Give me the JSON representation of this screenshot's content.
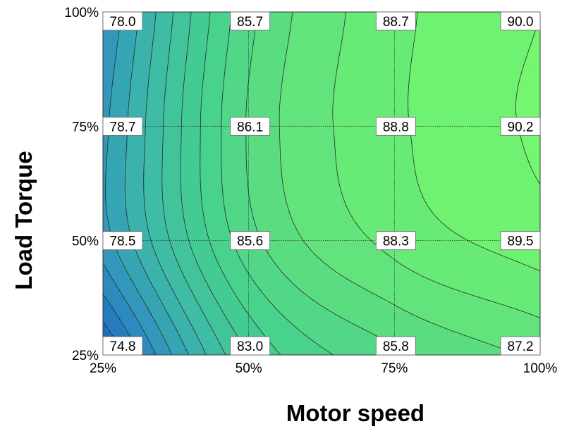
{
  "chart_data": {
    "type": "heatmap",
    "subtype": "filled-contour",
    "title": "",
    "xlabel": "Motor speed",
    "ylabel": "Load Torque",
    "x_categories": [
      "25%",
      "50%",
      "75%",
      "100%"
    ],
    "y_categories": [
      "25%",
      "50%",
      "75%",
      "100%"
    ],
    "x_values": [
      25,
      50,
      75,
      100
    ],
    "y_values": [
      25,
      50,
      75,
      100
    ],
    "xlim": [
      25,
      100
    ],
    "ylim": [
      25,
      100
    ],
    "z": [
      [
        74.8,
        83.0,
        85.8,
        87.2
      ],
      [
        78.5,
        85.6,
        88.3,
        89.5
      ],
      [
        78.7,
        86.1,
        88.8,
        90.2
      ],
      [
        78.0,
        85.7,
        88.7,
        90.0
      ]
    ],
    "z_labels": [
      [
        "74.8",
        "83.0",
        "85.8",
        "87.2"
      ],
      [
        "78.5",
        "85.6",
        "88.3",
        "89.5"
      ],
      [
        "78.7",
        "86.1",
        "88.8",
        "90.2"
      ],
      [
        "78.0",
        "85.7",
        "88.7",
        "90.0"
      ]
    ],
    "zlim": [
      74.8,
      90.2
    ],
    "colormap": [
      "#1565b8",
      "#2f8fbf",
      "#3db8a8",
      "#45cf8f",
      "#5fe07e",
      "#74f76e"
    ],
    "grid": true,
    "grid_color": "#222222",
    "contour_line_color": "#2a2a2a"
  }
}
